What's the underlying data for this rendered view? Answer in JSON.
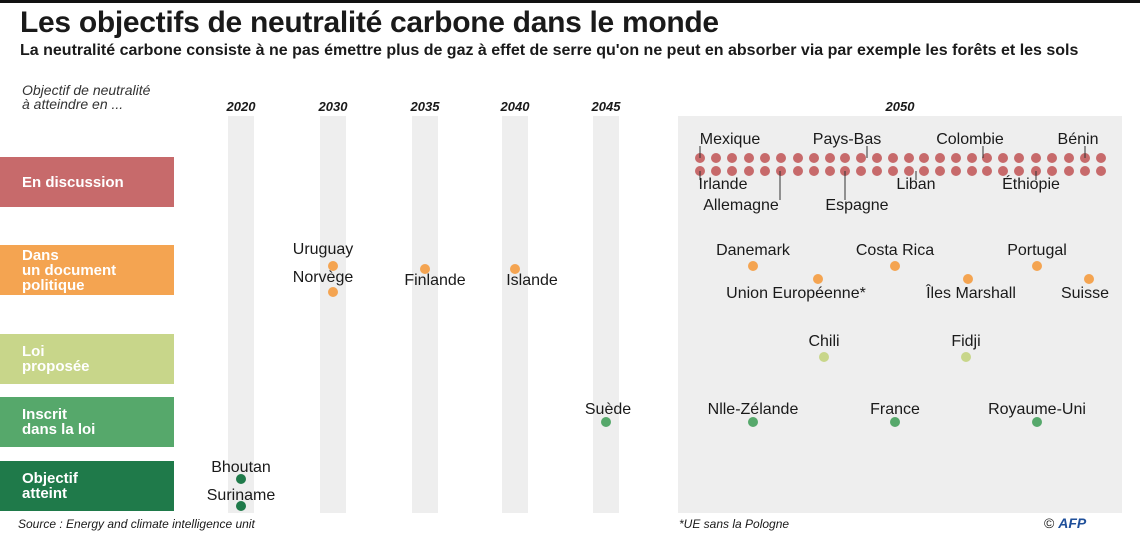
{
  "header": {
    "title": "Les objectifs de neutralité carbone dans le monde",
    "subtitle": "La neutralité carbone consiste à ne pas émettre plus de gaz à effet de serre qu'on ne peut en absorber via par exemple les forêts et les sols",
    "axis_caption": "Objectif de neutralité\nà atteindre en ..."
  },
  "footer": {
    "source": "Source : Energy and climate intelligence unit",
    "note": "*UE sans la Pologne",
    "credit_symbol": "©",
    "credit_brand": "AFP"
  },
  "chart_data": {
    "type": "scatter",
    "title": "Les objectifs de neutralité carbone dans le monde",
    "x_label": "Objectif de neutralité à atteindre en ...",
    "x_ticks": [
      "2020",
      "2030",
      "2035",
      "2040",
      "2045",
      "2050"
    ],
    "grid": false,
    "categories": [
      {
        "key": "disc",
        "name": "En discussion",
        "color": "#c76a6b"
      },
      {
        "key": "doc",
        "name": "Dans un document politique",
        "color": "#f4a451"
      },
      {
        "key": "loi",
        "name": "Loi proposée",
        "color": "#c8d68a"
      },
      {
        "key": "ins",
        "name": "Inscrit dans la loi",
        "color": "#56a86b"
      },
      {
        "key": "obj",
        "name": "Objectif atteint",
        "color": "#1f7a4a"
      }
    ],
    "points": [
      {
        "country": "Bhoutan",
        "year": 2020,
        "category": "obj"
      },
      {
        "country": "Suriname",
        "year": 2020,
        "category": "obj"
      },
      {
        "country": "Uruguay",
        "year": 2030,
        "category": "doc"
      },
      {
        "country": "Norvège",
        "year": 2030,
        "category": "doc"
      },
      {
        "country": "Finlande",
        "year": 2035,
        "category": "doc"
      },
      {
        "country": "Islande",
        "year": 2040,
        "category": "doc"
      },
      {
        "country": "Suède",
        "year": 2045,
        "category": "ins"
      },
      {
        "country": "Danemark",
        "year": 2050,
        "category": "doc"
      },
      {
        "country": "Costa Rica",
        "year": 2050,
        "category": "doc"
      },
      {
        "country": "Portugal",
        "year": 2050,
        "category": "doc"
      },
      {
        "country": "Union Européenne*",
        "year": 2050,
        "category": "doc"
      },
      {
        "country": "Îles Marshall",
        "year": 2050,
        "category": "doc"
      },
      {
        "country": "Suisse",
        "year": 2050,
        "category": "doc"
      },
      {
        "country": "Chili",
        "year": 2050,
        "category": "loi"
      },
      {
        "country": "Fidji",
        "year": 2050,
        "category": "loi"
      },
      {
        "country": "Nlle-Zélande",
        "year": 2050,
        "category": "ins"
      },
      {
        "country": "France",
        "year": 2050,
        "category": "ins"
      },
      {
        "country": "Royaume-Uni",
        "year": 2050,
        "category": "ins"
      },
      {
        "country": "Mexique",
        "year": 2050,
        "category": "disc"
      },
      {
        "country": "Pays-Bas",
        "year": 2050,
        "category": "disc"
      },
      {
        "country": "Colombie",
        "year": 2050,
        "category": "disc"
      },
      {
        "country": "Bénin",
        "year": 2050,
        "category": "disc"
      },
      {
        "country": "Irlande",
        "year": 2050,
        "category": "disc"
      },
      {
        "country": "Allemagne",
        "year": 2050,
        "category": "disc"
      },
      {
        "country": "Espagne",
        "year": 2050,
        "category": "disc"
      },
      {
        "country": "Liban",
        "year": 2050,
        "category": "disc"
      },
      {
        "country": "Éthiopie",
        "year": 2050,
        "category": "disc"
      }
    ],
    "en_discussion_2050_unlabeled_countries": 40
  }
}
